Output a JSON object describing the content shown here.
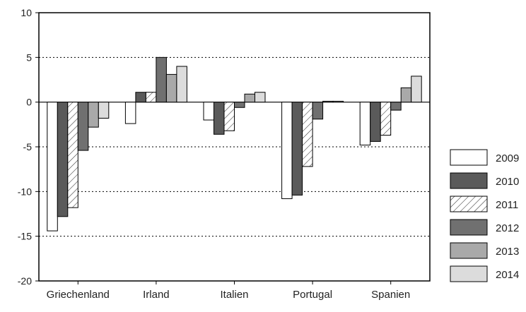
{
  "chart_data": {
    "type": "bar",
    "title": "",
    "xlabel": "",
    "ylabel": "",
    "ylim": [
      -20,
      10
    ],
    "yticks": [
      "10",
      "5",
      "0",
      "-5",
      "-10",
      "-15",
      "-20"
    ],
    "grid": "horizontal-dotted",
    "legend_position": "right",
    "categories": [
      "Griechenland",
      "Irland",
      "Italien",
      "Portugal",
      "Spanien"
    ],
    "series": [
      {
        "name": "2009",
        "values": [
          -14.4,
          -2.4,
          -2.0,
          -10.8,
          -4.8
        ],
        "fill": "#ffffff",
        "pattern": "none"
      },
      {
        "name": "2010",
        "values": [
          -12.8,
          1.1,
          -3.6,
          -10.4,
          -4.4
        ],
        "fill": "#5a5a5a",
        "pattern": "none"
      },
      {
        "name": "2011",
        "values": [
          -11.8,
          1.1,
          -3.2,
          -7.2,
          -3.7
        ],
        "fill": "#ffffff",
        "pattern": "hatch"
      },
      {
        "name": "2012",
        "values": [
          -5.4,
          5.0,
          -0.6,
          -1.9,
          -0.9
        ],
        "fill": "#707070",
        "pattern": "none"
      },
      {
        "name": "2013",
        "values": [
          -2.8,
          3.1,
          0.9,
          0.1,
          1.6
        ],
        "fill": "#a9a9a9",
        "pattern": "none"
      },
      {
        "name": "2014",
        "values": [
          -1.8,
          4.0,
          1.1,
          0.1,
          2.9
        ],
        "fill": "#dcdcdc",
        "pattern": "none"
      }
    ]
  }
}
